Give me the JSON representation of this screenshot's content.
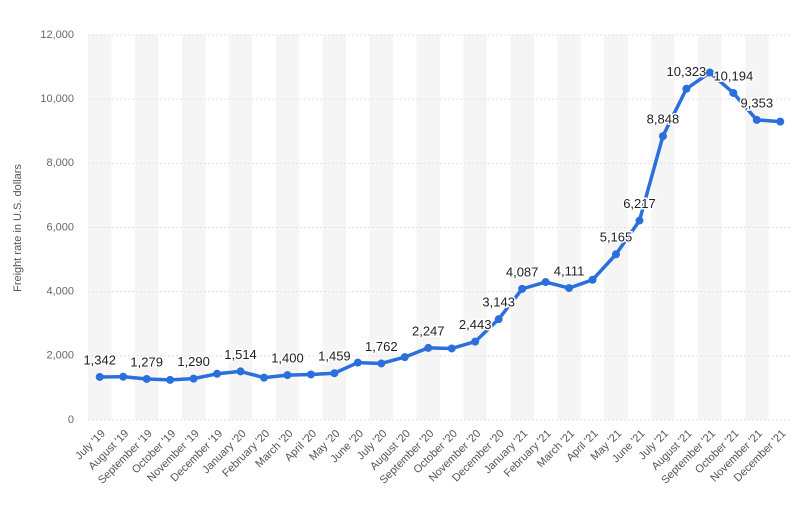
{
  "chart_data": {
    "type": "line",
    "y_label": "Freight rate in U.S. dollars",
    "categories": [
      "July '19",
      "August '19",
      "September '19",
      "October '19",
      "November '19",
      "December '19",
      "January '20",
      "February '20",
      "March '20",
      "April '20",
      "May '20",
      "June '20",
      "July '20",
      "August '20",
      "September '20",
      "October '20",
      "November '20",
      "December '20",
      "January '21",
      "February '21",
      "March '21",
      "April '21",
      "May '21",
      "June '21",
      "July '21",
      "August '21",
      "September '21",
      "October '21",
      "November '21",
      "December '21"
    ],
    "series": [
      {
        "color": "#2a6fdb",
        "values": [
          1342,
          1350,
          1279,
          1250,
          1290,
          1440,
          1514,
          1320,
          1400,
          1420,
          1459,
          1790,
          1762,
          1960,
          2247,
          2230,
          2443,
          3143,
          4087,
          4300,
          4111,
          4370,
          5165,
          6217,
          8848,
          10323,
          10830,
          10194,
          9353,
          9300
        ],
        "value_labels": [
          "1,342",
          null,
          "1,279",
          null,
          "1,290",
          null,
          "1,514",
          null,
          "1,400",
          null,
          "1,459",
          null,
          "1,762",
          null,
          "2,247",
          null,
          "2,443",
          "3,143",
          "4,087",
          null,
          "4,111",
          null,
          "5,165",
          "6,217",
          "8,848",
          "10,323",
          null,
          "10,194",
          "9,353",
          null
        ]
      }
    ],
    "ylim": [
      0,
      12000
    ],
    "yticks": [
      0,
      {
        "value": 2000,
        "label": "2,000"
      },
      {
        "value": 4000,
        "label": "4,000"
      },
      {
        "value": 6000,
        "label": "6,000"
      },
      {
        "value": 8000,
        "label": "8,000"
      },
      {
        "value": 10000,
        "label": "10,000"
      },
      {
        "value": 12000,
        "label": "12,000"
      }
    ],
    "grid": true
  }
}
